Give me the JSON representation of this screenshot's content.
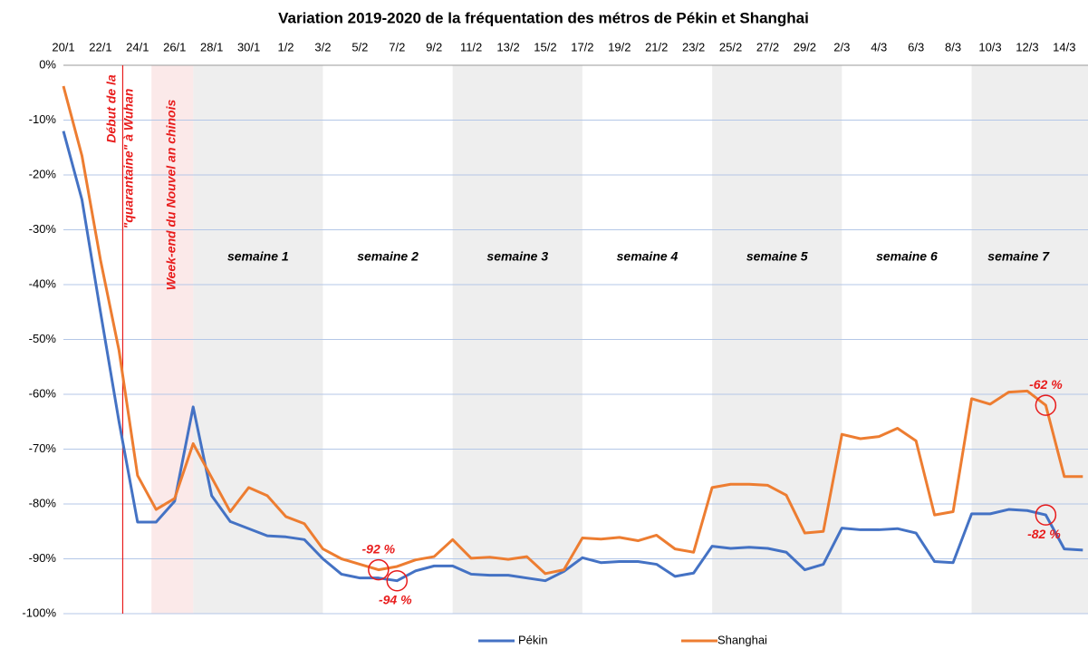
{
  "chart_data": {
    "type": "line",
    "title": "Variation 2019-2020 de la fréquentation des métros de Pékin et Shanghai",
    "categories": [
      "20/1",
      null,
      "22/1",
      null,
      "24/1",
      null,
      "26/1",
      null,
      "28/1",
      null,
      "30/1",
      null,
      "1/2",
      null,
      "3/2",
      null,
      "5/2",
      null,
      "7/2",
      null,
      "9/2",
      null,
      "11/2",
      null,
      "13/2",
      null,
      "15/2",
      null,
      "17/2",
      null,
      "19/2",
      null,
      "21/2",
      null,
      "23/2",
      null,
      "25/2",
      null,
      "27/2",
      null,
      "29/2",
      null,
      "2/3",
      null,
      "4/3",
      null,
      "6/3",
      null,
      "8/3",
      null,
      "10/3",
      null,
      "12/3",
      null,
      "14/3",
      null
    ],
    "series": [
      {
        "name": "Pékin",
        "color": "#4472c4",
        "values": [
          -12,
          -24.5,
          -45,
          -65,
          -83.3,
          -83.3,
          -79.5,
          -62.3,
          -78.5,
          -83.2,
          -84.5,
          -85.8,
          -86,
          -86.5,
          -90,
          -92.8,
          -93.5,
          -93.5,
          -94,
          -92.2,
          -91.3,
          -91.3,
          -92.8,
          -93,
          -93,
          -93.5,
          -94,
          -92.3,
          -89.8,
          -90.7,
          -90.5,
          -90.5,
          -91,
          -93.2,
          -92.6,
          -87.7,
          -88.1,
          -87.9,
          -88.1,
          -88.8,
          -92,
          -91,
          -84.4,
          -84.7,
          -84.7,
          -84.5,
          -85.3,
          -90.5,
          -90.7,
          -81.8,
          -81.8,
          -81,
          -81.2,
          -82,
          -88.2,
          -88.4
        ],
        "value_labels": [
          null,
          null,
          null,
          null,
          null,
          null,
          null,
          null,
          null,
          null,
          null,
          null,
          null,
          null,
          null,
          null,
          null,
          null,
          "-94 %",
          null,
          null,
          null,
          null,
          null,
          null,
          null,
          null,
          null,
          null,
          null,
          null,
          null,
          null,
          null,
          null,
          null,
          null,
          null,
          null,
          null,
          null,
          null,
          null,
          null,
          null,
          null,
          null,
          null,
          null,
          null,
          null,
          null,
          null,
          "-82 %",
          null,
          null
        ]
      },
      {
        "name": "Shanghai",
        "color": "#ed7d31",
        "values": [
          -3.8,
          -16.5,
          -35.5,
          -52,
          -74.8,
          -81,
          -79,
          -69,
          -75.2,
          -81.4,
          -77,
          -78.5,
          -82.3,
          -83.6,
          -88.2,
          -90,
          -91,
          -92,
          -91.4,
          -90.2,
          -89.6,
          -86.5,
          -89.9,
          -89.7,
          -90.1,
          -89.6,
          -92.7,
          -92,
          -86.2,
          -86.4,
          -86.1,
          -86.7,
          -85.7,
          -88.2,
          -88.8,
          -77,
          -76.4,
          -76.4,
          -76.6,
          -78.4,
          -85.3,
          -85,
          -67.3,
          -68.1,
          -67.7,
          -66.2,
          -68.5,
          -82,
          -81.4,
          -60.8,
          -61.8,
          -59.6,
          -59.4,
          -62,
          -75,
          -75
        ],
        "value_labels": [
          null,
          null,
          null,
          null,
          null,
          null,
          null,
          null,
          null,
          null,
          null,
          null,
          null,
          null,
          null,
          null,
          null,
          "-92 %",
          null,
          null,
          null,
          null,
          null,
          null,
          null,
          null,
          null,
          null,
          null,
          null,
          null,
          null,
          null,
          null,
          null,
          null,
          null,
          null,
          null,
          null,
          null,
          null,
          null,
          null,
          null,
          null,
          null,
          null,
          null,
          null,
          null,
          null,
          null,
          "-62 %",
          null,
          null
        ]
      }
    ],
    "ylim": [
      -100,
      0
    ],
    "yticks": [
      {
        "value": 0,
        "label": "0%"
      },
      {
        "value": -10,
        "label": "-10%"
      },
      {
        "value": -20,
        "label": "-20%"
      },
      {
        "value": -30,
        "label": "-30%"
      },
      {
        "value": -40,
        "label": "-40%"
      },
      {
        "value": -50,
        "label": "-50%"
      },
      {
        "value": -60,
        "label": "-60%"
      },
      {
        "value": -70,
        "label": "-70%"
      },
      {
        "value": -80,
        "label": "-80%"
      },
      {
        "value": -90,
        "label": "-90%"
      },
      {
        "value": -100,
        "label": "-100%"
      }
    ],
    "grid": true,
    "weeks": [
      "semaine 1",
      "semaine 2",
      "semaine 3",
      "semaine 4",
      "semaine 5",
      "semaine 6",
      "semaine 7"
    ],
    "annotations": [
      "Début de la",
      "\"quarantaine\" à Wuhan",
      "Week-end du Nouvel an chinois"
    ]
  }
}
